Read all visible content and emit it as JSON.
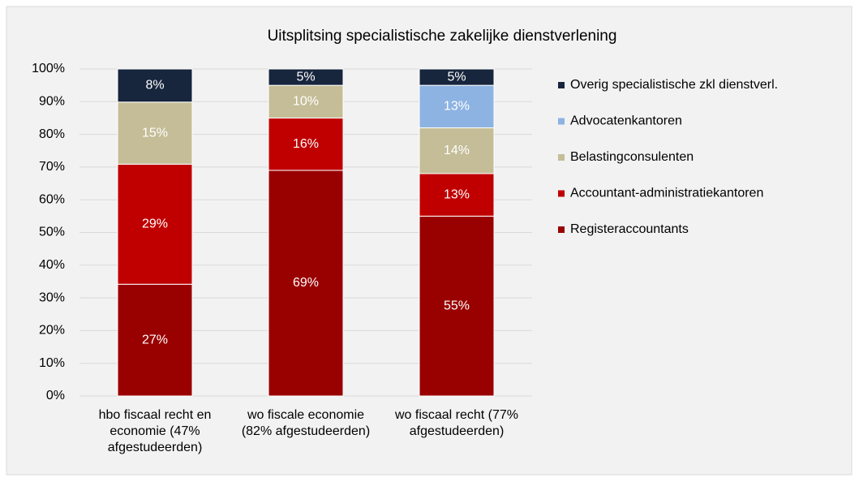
{
  "chart_data": {
    "type": "stacked_percent",
    "title": "Uitsplitsing specialistische zakelijke dienstverlening",
    "categories": [
      "hbo fiscaal recht en economie (47% afgestudeerden)",
      "wo fiscale economie (82% afgestudeerden)",
      "wo fiscaal recht (77% afgestudeerden)"
    ],
    "series": [
      {
        "name": "Registeraccountants",
        "color": "#990000",
        "values": [
          27,
          69,
          55
        ],
        "value_labels": [
          "27%",
          "69%",
          "55%"
        ]
      },
      {
        "name": "Accountant-administratiekantoren",
        "color": "#c00000",
        "values": [
          29,
          16,
          13
        ],
        "value_labels": [
          "29%",
          "16%",
          "13%"
        ]
      },
      {
        "name": "Belastingconsulenten",
        "color": "#c4bd97",
        "values": [
          15,
          10,
          14
        ],
        "value_labels": [
          "15%",
          "10%",
          "14%"
        ]
      },
      {
        "name": "Advocatenkantoren",
        "color": "#8db3e2",
        "values": [
          null,
          null,
          13
        ],
        "value_labels": [
          null,
          null,
          "13%"
        ]
      },
      {
        "name": "Overig specialistische zkl dienstverl.",
        "color": "#17253d",
        "values": [
          8,
          5,
          5
        ],
        "value_labels": [
          "8%",
          "5%",
          "5%"
        ]
      }
    ],
    "ylim": [
      0,
      100
    ],
    "yticks": [
      {
        "value": 0,
        "label": "0%"
      },
      {
        "value": 10,
        "label": "10%"
      },
      {
        "value": 20,
        "label": "20%"
      },
      {
        "value": 30,
        "label": "30%"
      },
      {
        "value": 40,
        "label": "40%"
      },
      {
        "value": 50,
        "label": "50%"
      },
      {
        "value": 60,
        "label": "60%"
      },
      {
        "value": 70,
        "label": "70%"
      },
      {
        "value": 80,
        "label": "80%"
      },
      {
        "value": 90,
        "label": "90%"
      },
      {
        "value": 100,
        "label": "100%"
      }
    ],
    "grid": true,
    "legend": "right"
  }
}
